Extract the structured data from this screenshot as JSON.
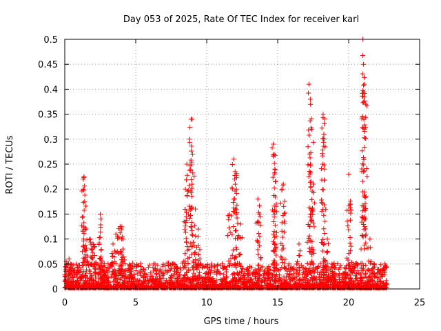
{
  "chart_data": {
    "type": "scatter",
    "title": "Day 053 of 2025, Rate Of TEC Index for receiver karl",
    "xlabel": "GPS time / hours",
    "ylabel": "ROTI / TECUs",
    "xlim": [
      0,
      25
    ],
    "ylim": [
      0,
      0.5
    ],
    "x_ticks": [
      0,
      5,
      10,
      15,
      20,
      25
    ],
    "x_tick_labels": [
      "0",
      "5",
      "10",
      "15",
      "20",
      "25"
    ],
    "y_ticks": [
      0,
      0.05,
      0.1,
      0.15,
      0.2,
      0.25,
      0.3,
      0.35,
      0.4,
      0.45,
      0.5
    ],
    "y_tick_labels": [
      "0",
      "0.05",
      "0.1",
      "0.15",
      "0.2",
      "0.25",
      "0.3",
      "0.35",
      "0.4",
      "0.45",
      "0.5"
    ],
    "grid": true,
    "marker": "+",
    "series_color": "#ff0000",
    "data_x_range": [
      0,
      22.7
    ],
    "series": [
      {
        "name": "ROTI",
        "x": [
          0.1,
          0.3,
          1.3,
          1.35,
          1.4,
          1.5,
          1.8,
          2.0,
          2.1,
          2.5,
          2.55,
          3.4,
          3.6,
          3.9,
          4.0,
          4.1,
          8.5,
          8.6,
          8.8,
          8.9,
          9.0,
          9.2,
          9.4,
          11.6,
          11.9,
          12.0,
          12.1,
          12.4,
          13.6,
          13.7,
          14.7,
          14.75,
          14.8,
          14.9,
          15.3,
          15.4,
          16.5,
          17.2,
          17.3,
          17.4,
          17.5,
          18.2,
          18.25,
          18.3,
          18.5,
          20.0,
          20.1,
          21.0,
          21.05,
          21.1,
          21.2,
          21.5
        ],
        "y": [
          0.055,
          0.06,
          0.22,
          0.225,
          0.175,
          0.12,
          0.1,
          0.09,
          0.085,
          0.15,
          0.14,
          0.09,
          0.11,
          0.125,
          0.12,
          0.08,
          0.2,
          0.25,
          0.3,
          0.34,
          0.27,
          0.16,
          0.12,
          0.15,
          0.26,
          0.235,
          0.2,
          0.13,
          0.18,
          0.15,
          0.29,
          0.27,
          0.24,
          0.17,
          0.2,
          0.21,
          0.09,
          0.41,
          0.38,
          0.32,
          0.21,
          0.35,
          0.31,
          0.24,
          0.1,
          0.23,
          0.17,
          0.5,
          0.45,
          0.41,
          0.37,
          0.1
        ]
      }
    ]
  }
}
